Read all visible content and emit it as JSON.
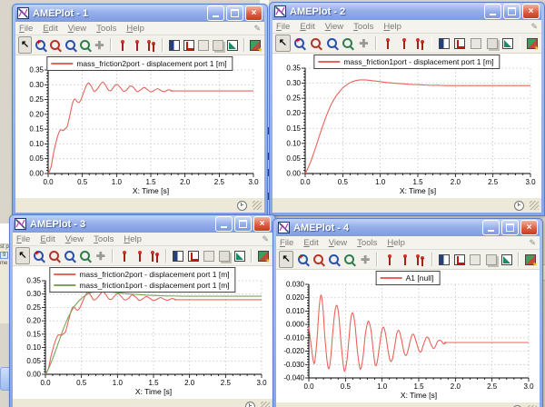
{
  "app": {
    "name": "AMEPlot",
    "colors": {
      "titlebar_blue": "#8faae6",
      "close_red": "#d6492f",
      "curve_red": "#e8645c",
      "curve_green": "#7fa35a",
      "grid_gray": "#cccccc",
      "chrome_beige": "#ece9d8"
    }
  },
  "menu_items": [
    "File",
    "Edit",
    "View",
    "Tools",
    "Help"
  ],
  "icons": {
    "pointer_glyph": "↖",
    "pan_glyph": "✚",
    "pen_glyph": "✎",
    "close_glyph": "×",
    "zoom_in_sign": "+"
  },
  "toolbar_icon_names": [
    "pointer-tool",
    "zoom-in",
    "zoom-out",
    "zoom-window",
    "zoom-previous",
    "pan-tool",
    "marker-pin",
    "marker-pin-2",
    "marker-pin-double",
    "graph-panel",
    "plot-setup",
    "overlay-disabled",
    "copy-disabled",
    "export-plot",
    "new-plot-window"
  ],
  "windows": [
    {
      "title": "AMEPlot - 1",
      "chart_index": 0
    },
    {
      "title": "AMEPlot - 2",
      "chart_index": 1
    },
    {
      "title": "AMEPlot - 3",
      "chart_index": 2
    },
    {
      "title": "AMEPlot - 4",
      "chart_index": 3
    }
  ],
  "fragments": {
    "left_text_1": "st p",
    "left_button": "9",
    "left_text_2": "me",
    "mid_gap_text": "oo",
    "right_fragment_text": "x"
  },
  "series_points": {
    "friction2": [
      [
        0,
        0
      ],
      [
        0.04,
        0.02
      ],
      [
        0.08,
        0.07
      ],
      [
        0.12,
        0.11
      ],
      [
        0.16,
        0.14
      ],
      [
        0.19,
        0.148
      ],
      [
        0.22,
        0.145
      ],
      [
        0.25,
        0.152
      ],
      [
        0.28,
        0.16
      ],
      [
        0.32,
        0.2
      ],
      [
        0.36,
        0.24
      ],
      [
        0.39,
        0.252
      ],
      [
        0.42,
        0.244
      ],
      [
        0.45,
        0.24
      ],
      [
        0.48,
        0.25
      ],
      [
        0.52,
        0.275
      ],
      [
        0.56,
        0.298
      ],
      [
        0.59,
        0.306
      ],
      [
        0.63,
        0.295
      ],
      [
        0.67,
        0.278
      ],
      [
        0.71,
        0.283
      ],
      [
        0.76,
        0.3
      ],
      [
        0.8,
        0.309
      ],
      [
        0.84,
        0.298
      ],
      [
        0.88,
        0.282
      ],
      [
        0.92,
        0.281
      ],
      [
        0.97,
        0.296
      ],
      [
        1.01,
        0.301
      ],
      [
        1.06,
        0.289
      ],
      [
        1.1,
        0.278
      ],
      [
        1.15,
        0.283
      ],
      [
        1.2,
        0.296
      ],
      [
        1.25,
        0.29
      ],
      [
        1.3,
        0.277
      ],
      [
        1.35,
        0.282
      ],
      [
        1.4,
        0.291
      ],
      [
        1.45,
        0.284
      ],
      [
        1.5,
        0.276
      ],
      [
        1.55,
        0.281
      ],
      [
        1.6,
        0.287
      ],
      [
        1.65,
        0.28
      ],
      [
        1.7,
        0.277
      ],
      [
        1.76,
        0.283
      ],
      [
        1.82,
        0.279
      ],
      [
        1.9,
        0.279
      ],
      [
        3.0,
        0.279
      ]
    ],
    "friction1": [
      [
        0,
        0
      ],
      [
        0.05,
        0.025
      ],
      [
        0.1,
        0.058
      ],
      [
        0.15,
        0.095
      ],
      [
        0.2,
        0.133
      ],
      [
        0.25,
        0.17
      ],
      [
        0.3,
        0.203
      ],
      [
        0.35,
        0.231
      ],
      [
        0.4,
        0.253
      ],
      [
        0.45,
        0.27
      ],
      [
        0.5,
        0.284
      ],
      [
        0.55,
        0.294
      ],
      [
        0.6,
        0.302
      ],
      [
        0.65,
        0.307
      ],
      [
        0.7,
        0.31
      ],
      [
        0.75,
        0.311
      ],
      [
        0.8,
        0.311
      ],
      [
        0.85,
        0.31
      ],
      [
        0.9,
        0.308
      ],
      [
        0.95,
        0.307
      ],
      [
        1.0,
        0.305
      ],
      [
        1.1,
        0.302
      ],
      [
        1.2,
        0.3
      ],
      [
        1.3,
        0.298
      ],
      [
        1.4,
        0.296
      ],
      [
        1.5,
        0.295
      ],
      [
        1.6,
        0.294
      ],
      [
        1.7,
        0.293
      ],
      [
        1.8,
        0.293
      ],
      [
        1.9,
        0.292
      ],
      [
        2.0,
        0.292
      ],
      [
        3.0,
        0.292
      ]
    ],
    "a1": [
      [
        0,
        -0.002
      ],
      [
        0.03,
        -0.015
      ],
      [
        0.06,
        -0.027
      ],
      [
        0.08,
        -0.028
      ],
      [
        0.11,
        -0.012
      ],
      [
        0.14,
        0.012
      ],
      [
        0.165,
        0.022
      ],
      [
        0.19,
        0.014
      ],
      [
        0.22,
        -0.01
      ],
      [
        0.25,
        -0.028
      ],
      [
        0.275,
        -0.033
      ],
      [
        0.3,
        -0.024
      ],
      [
        0.33,
        -0.004
      ],
      [
        0.36,
        0.011
      ],
      [
        0.385,
        0.014
      ],
      [
        0.41,
        0.006
      ],
      [
        0.44,
        -0.014
      ],
      [
        0.47,
        -0.03
      ],
      [
        0.49,
        -0.035
      ],
      [
        0.52,
        -0.027
      ],
      [
        0.55,
        -0.009
      ],
      [
        0.575,
        0.005
      ],
      [
        0.6,
        0.0085
      ],
      [
        0.63,
        0
      ],
      [
        0.66,
        -0.018
      ],
      [
        0.69,
        -0.031
      ],
      [
        0.71,
        -0.033
      ],
      [
        0.74,
        -0.024
      ],
      [
        0.77,
        -0.008
      ],
      [
        0.8,
        0.001
      ],
      [
        0.82,
        0.002
      ],
      [
        0.85,
        -0.005
      ],
      [
        0.88,
        -0.02
      ],
      [
        0.905,
        -0.03
      ],
      [
        0.93,
        -0.029
      ],
      [
        0.96,
        -0.018
      ],
      [
        0.99,
        -0.006
      ],
      [
        1.02,
        -0.002
      ],
      [
        1.05,
        -0.008
      ],
      [
        1.08,
        -0.019
      ],
      [
        1.11,
        -0.027
      ],
      [
        1.14,
        -0.026
      ],
      [
        1.17,
        -0.017
      ],
      [
        1.2,
        -0.007
      ],
      [
        1.23,
        -0.0045
      ],
      [
        1.26,
        -0.01
      ],
      [
        1.3,
        -0.021
      ],
      [
        1.33,
        -0.023
      ],
      [
        1.36,
        -0.018
      ],
      [
        1.4,
        -0.009
      ],
      [
        1.43,
        -0.0075
      ],
      [
        1.46,
        -0.012
      ],
      [
        1.5,
        -0.019
      ],
      [
        1.53,
        -0.0205
      ],
      [
        1.56,
        -0.016
      ],
      [
        1.6,
        -0.01
      ],
      [
        1.63,
        -0.01
      ],
      [
        1.66,
        -0.014
      ],
      [
        1.7,
        -0.018
      ],
      [
        1.73,
        -0.016
      ],
      [
        1.76,
        -0.0125
      ],
      [
        1.8,
        -0.012
      ],
      [
        1.84,
        -0.0145
      ],
      [
        1.88,
        -0.0135
      ],
      [
        1.95,
        -0.0135
      ],
      [
        3.0,
        -0.0135
      ]
    ]
  },
  "chart_data": [
    {
      "type": "line",
      "title": "",
      "xlabel": "X: Time [s]",
      "xlim": [
        0,
        3.0
      ],
      "xticks": [
        0.0,
        0.5,
        1.0,
        1.5,
        2.0,
        2.5,
        3.0
      ],
      "xtick_labels": [
        "0.0",
        "0.5",
        "1.0",
        "1.5",
        "2.0",
        "2.5",
        "3.0"
      ],
      "ylim": [
        0,
        0.35
      ],
      "yticks": [
        0,
        0.05,
        0.1,
        0.15,
        0.2,
        0.25,
        0.3,
        0.35
      ],
      "ytick_labels": [
        "0.00",
        "0.05",
        "0.10",
        "0.15",
        "0.20",
        "0.25",
        "0.30",
        "0.35"
      ],
      "grid": true,
      "legend_position": "top-center",
      "series": [
        {
          "name": "mass_friction2port - displacement port 1 [m]",
          "color": "#e8645c",
          "points_ref": "friction2"
        }
      ]
    },
    {
      "type": "line",
      "title": "",
      "xlabel": "X: Time [s]",
      "xlim": [
        0,
        3.0
      ],
      "xticks": [
        0.0,
        0.5,
        1.0,
        1.5,
        2.0,
        2.5,
        3.0
      ],
      "xtick_labels": [
        "0.0",
        "0.5",
        "1.0",
        "1.5",
        "2.0",
        "2.5",
        "3.0"
      ],
      "ylim": [
        0,
        0.35
      ],
      "yticks": [
        0,
        0.05,
        0.1,
        0.15,
        0.2,
        0.25,
        0.3,
        0.35
      ],
      "ytick_labels": [
        "0.00",
        "0.05",
        "0.10",
        "0.15",
        "0.20",
        "0.25",
        "0.30",
        "0.35"
      ],
      "grid": true,
      "legend_position": "top-center",
      "series": [
        {
          "name": "mass_friction1port - displacement port 1 [m]",
          "color": "#e8645c",
          "points_ref": "friction1"
        }
      ]
    },
    {
      "type": "line",
      "title": "",
      "xlabel": "X: Time [s]",
      "xlim": [
        0,
        3.0
      ],
      "xticks": [
        0.0,
        0.5,
        1.0,
        1.5,
        2.0,
        2.5,
        3.0
      ],
      "xtick_labels": [
        "0.0",
        "0.5",
        "1.0",
        "1.5",
        "2.0",
        "2.5",
        "3.0"
      ],
      "ylim": [
        0,
        0.35
      ],
      "yticks": [
        0,
        0.05,
        0.1,
        0.15,
        0.2,
        0.25,
        0.3,
        0.35
      ],
      "ytick_labels": [
        "0.00",
        "0.05",
        "0.10",
        "0.15",
        "0.20",
        "0.25",
        "0.30",
        "0.35"
      ],
      "grid": true,
      "legend_position": "top-center",
      "series": [
        {
          "name": "mass_friction2port - displacement port 1 [m]",
          "color": "#e8645c",
          "points_ref": "friction2"
        },
        {
          "name": "mass_friction1port - displacement port 1 [m]",
          "color": "#7fa35a",
          "points_ref": "friction1"
        }
      ]
    },
    {
      "type": "line",
      "title": "",
      "xlabel": "X: Time [s]",
      "xlim": [
        0,
        3.0
      ],
      "xticks": [
        0.0,
        0.5,
        1.0,
        1.5,
        2.0,
        2.5,
        3.0
      ],
      "xtick_labels": [
        "0.0",
        "0.5",
        "1.0",
        "1.5",
        "2.0",
        "2.5",
        "3.0"
      ],
      "ylim": [
        -0.04,
        0.03
      ],
      "yticks": [
        -0.04,
        -0.03,
        -0.02,
        -0.01,
        0,
        0.01,
        0.02,
        0.03
      ],
      "ytick_labels": [
        "-0.040",
        "-0.030",
        "-0.020",
        "-0.010",
        "0.000",
        "0.010",
        "0.020",
        "0.030"
      ],
      "grid": true,
      "legend_position": "top-left-of-center",
      "series": [
        {
          "name": "A1 [null]",
          "color": "#e8645c",
          "points_ref": "a1"
        }
      ]
    }
  ]
}
